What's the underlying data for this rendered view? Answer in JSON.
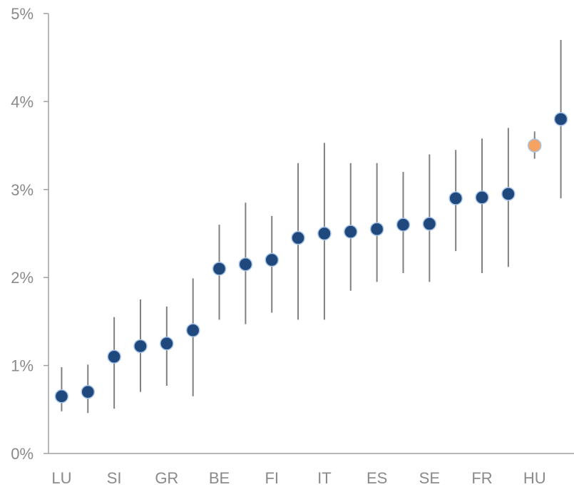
{
  "chart_data": {
    "type": "scatter",
    "x_tick_labels": [
      "LU",
      "SI",
      "GR",
      "BE",
      "FI",
      "IT",
      "ES",
      "SE",
      "FR",
      "HU"
    ],
    "y_ticks": [
      "0%",
      "1%",
      "2%",
      "3%",
      "4%",
      "5%"
    ],
    "ylim": [
      0,
      5
    ],
    "grid": false,
    "colors": {
      "point": "#1f497d",
      "point_outline": "#a8c4e8",
      "highlight": "#f4a460",
      "whisker": "#808080",
      "axis": "#a0a0a0"
    },
    "points": [
      {
        "value": 0.65,
        "low": 0.48,
        "high": 0.98
      },
      {
        "value": 0.7,
        "low": 0.46,
        "high": 1.01
      },
      {
        "value": 1.1,
        "low": 0.51,
        "high": 1.55
      },
      {
        "value": 1.22,
        "low": 0.7,
        "high": 1.75
      },
      {
        "value": 1.25,
        "low": 0.77,
        "high": 1.67
      },
      {
        "value": 1.4,
        "low": 0.65,
        "high": 1.99
      },
      {
        "value": 2.1,
        "low": 1.52,
        "high": 2.6
      },
      {
        "value": 2.15,
        "low": 1.47,
        "high": 2.85
      },
      {
        "value": 2.2,
        "low": 1.6,
        "high": 2.7
      },
      {
        "value": 2.45,
        "low": 1.52,
        "high": 3.3
      },
      {
        "value": 2.5,
        "low": 1.52,
        "high": 3.53
      },
      {
        "value": 2.52,
        "low": 1.85,
        "high": 3.3
      },
      {
        "value": 2.55,
        "low": 1.95,
        "high": 3.3
      },
      {
        "value": 2.6,
        "low": 2.05,
        "high": 3.2
      },
      {
        "value": 2.61,
        "low": 1.95,
        "high": 3.4
      },
      {
        "value": 2.9,
        "low": 2.3,
        "high": 3.45
      },
      {
        "value": 2.91,
        "low": 2.05,
        "high": 3.58
      },
      {
        "value": 2.95,
        "low": 2.12,
        "high": 3.7
      },
      {
        "value": 3.5,
        "low": 3.35,
        "high": 3.66,
        "highlight": true
      },
      {
        "value": 3.8,
        "low": 2.9,
        "high": 4.7
      }
    ]
  }
}
